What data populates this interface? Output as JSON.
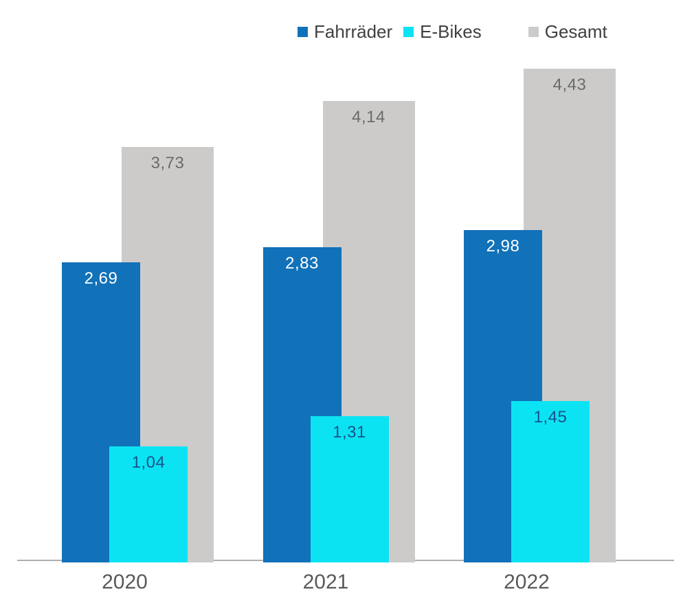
{
  "chart_data": {
    "type": "bar",
    "title": "",
    "xlabel": "",
    "ylabel": "",
    "categories": [
      "2020",
      "2021",
      "2022"
    ],
    "series": [
      {
        "id": "fahrraeder",
        "name": "Fahrräder",
        "values": [
          2.69,
          2.83,
          2.98
        ],
        "labels": [
          "2,69",
          "2,83",
          "2,98"
        ],
        "color": "#1171B9",
        "label_color": "#FFFFFF"
      },
      {
        "id": "ebikes",
        "name": "E-Bikes",
        "values": [
          1.04,
          1.31,
          1.45
        ],
        "labels": [
          "1,04",
          "1,31",
          "1,45"
        ],
        "color": "#0CE3F2",
        "label_color": "#16538B"
      },
      {
        "id": "gesamt",
        "name": "Gesamt",
        "values": [
          3.73,
          4.14,
          4.43
        ],
        "labels": [
          "3,73",
          "4,14",
          "4,43"
        ],
        "color": "#CCCBCA",
        "label_color": "#6B6B6B"
      }
    ],
    "ylim": [
      0,
      4.43
    ],
    "grid": false,
    "legend_position": "top",
    "value_format": "decimal-comma"
  },
  "legend": [
    {
      "label": "Fahrräder",
      "color": "#1171B9"
    },
    {
      "label": "E-Bikes",
      "color": "#0CE3F2"
    },
    {
      "label": "Gesamt",
      "color": "#CCCBCA"
    }
  ],
  "axis": {
    "line_color": "#AEAEAE",
    "tick_label_color": "#595959"
  }
}
